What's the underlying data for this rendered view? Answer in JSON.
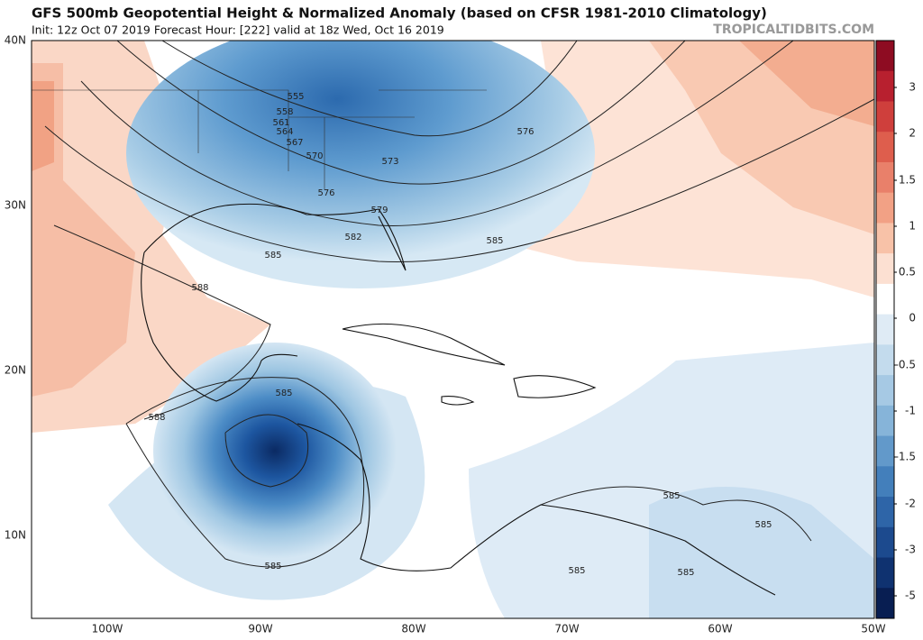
{
  "header": {
    "title": "GFS 500mb Geopotential Height & Normalized Anomaly (based on CFSR 1981-2010 Climatology)",
    "subtitle": "Init: 12z Oct 07 2019   Forecast Hour: [222]   valid at 18z Wed, Oct 16 2019",
    "source": "TROPICALTIDBITS.COM"
  },
  "axes": {
    "lat_labels": [
      "40N",
      "30N",
      "20N",
      "10N"
    ],
    "lon_labels": [
      "100W",
      "90W",
      "80W",
      "70W",
      "60W",
      "50W"
    ]
  },
  "colorbar": {
    "labels": [
      "3",
      "2",
      "1.5",
      "1",
      "0.5",
      "0",
      "-0.5",
      "-1",
      "-1.5",
      "-2",
      "-3",
      "-5"
    ]
  },
  "contour_labels": [
    "555",
    "558",
    "561",
    "564",
    "567",
    "570",
    "573",
    "576",
    "576",
    "579",
    "582",
    "585",
    "585",
    "588",
    "588",
    "585",
    "585",
    "585",
    "585",
    "585",
    "585"
  ]
}
